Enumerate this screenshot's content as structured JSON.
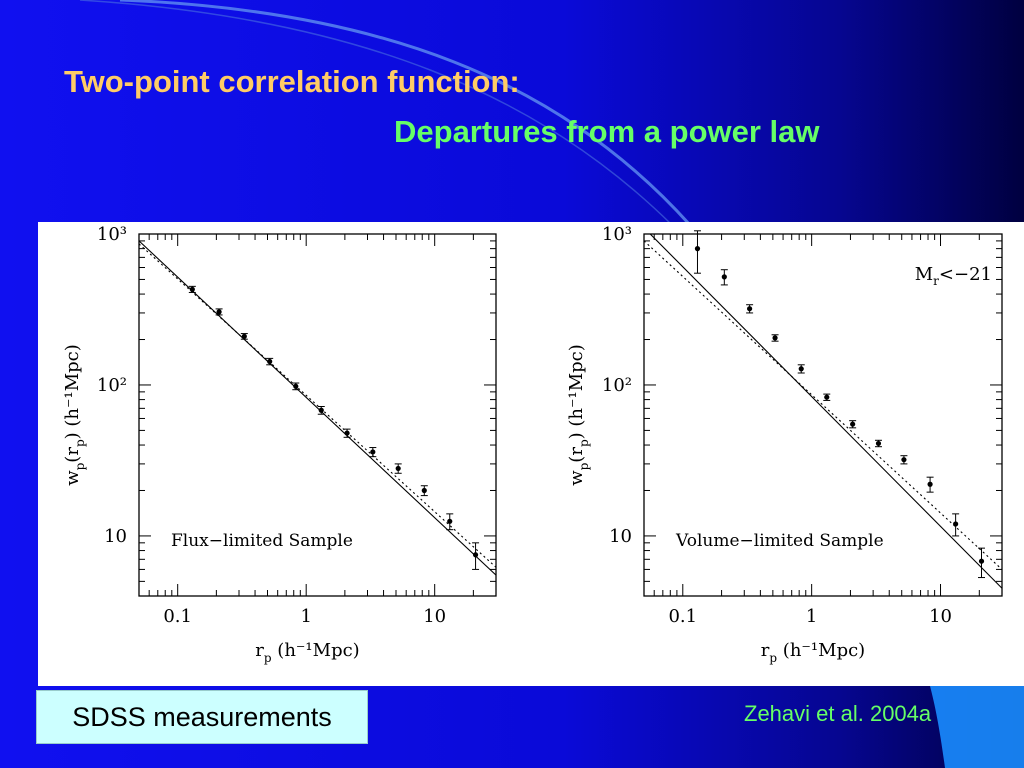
{
  "slide": {
    "title_line1": "Two-point correlation function:",
    "title_line2": "Departures from a power law",
    "caption": "SDSS measurements",
    "credit": "Zehavi et al. 2004a",
    "colors": {
      "background": "#1010f0",
      "title_line1": "#ffcc66",
      "title_line2": "#66ff66",
      "caption_box": "#ccffff",
      "credit": "#66ff66"
    }
  },
  "chart_data": [
    {
      "type": "scatter",
      "xlabel_main": "r",
      "xlabel_sub": "p",
      "xlabel_units": "(h⁻¹Mpc)",
      "ylabel": "w_p(r_p) (h⁻¹Mpc)",
      "ylabel_parts": [
        "w",
        "p",
        "(r",
        "p",
        ")",
        "(h⁻¹Mpc)"
      ],
      "xscale": "log",
      "yscale": "log",
      "xlim": [
        0.05,
        30
      ],
      "ylim": [
        4,
        1000
      ],
      "x_ticks": [
        {
          "value": 0.1,
          "label": "0.1"
        },
        {
          "value": 1,
          "label": "1"
        },
        {
          "value": 10,
          "label": "10"
        }
      ],
      "y_ticks": [
        {
          "value": 10,
          "label": "10"
        },
        {
          "value": 100,
          "label": "10²"
        },
        {
          "value": 1000,
          "label": "10³"
        }
      ],
      "annotation": "Flux−limited Sample",
      "annotation_position": "bottom-left",
      "series": [
        {
          "style": "points-with-errorbars",
          "x": [
            0.13,
            0.21,
            0.33,
            0.52,
            0.83,
            1.31,
            2.08,
            3.3,
            5.2,
            8.3,
            13.1,
            20.8
          ],
          "y": [
            430,
            305,
            210,
            143,
            98,
            68,
            48,
            36,
            28,
            20,
            12.5,
            7.5
          ],
          "err": [
            20,
            14,
            9,
            7,
            5,
            4,
            3,
            2.5,
            2,
            1.5,
            1.5,
            1.5
          ]
        },
        {
          "style": "solid-line",
          "x": [
            0.05,
            30
          ],
          "y": [
            900,
            5.5
          ]
        },
        {
          "style": "dotted-line",
          "x": [
            0.05,
            30
          ],
          "y": [
            860,
            6.2
          ]
        }
      ]
    },
    {
      "type": "scatter",
      "xlabel_main": "r",
      "xlabel_sub": "p",
      "xlabel_units": "(h⁻¹Mpc)",
      "ylabel": "w_p(r_p) (h⁻¹Mpc)",
      "ylabel_parts": [
        "w",
        "p",
        "(r",
        "p",
        ")",
        "(h⁻¹Mpc)"
      ],
      "xscale": "log",
      "yscale": "log",
      "xlim": [
        0.05,
        30
      ],
      "ylim": [
        4,
        1000
      ],
      "x_ticks": [
        {
          "value": 0.1,
          "label": "0.1"
        },
        {
          "value": 1,
          "label": "1"
        },
        {
          "value": 10,
          "label": "10"
        }
      ],
      "y_ticks": [
        {
          "value": 10,
          "label": "10"
        },
        {
          "value": 100,
          "label": "10²"
        },
        {
          "value": 1000,
          "label": "10³"
        }
      ],
      "annotation": "Volume−limited Sample",
      "annotation_position": "bottom-left",
      "legend_main": "M",
      "legend_sub": "r",
      "legend_rest": "<−21",
      "legend_position": "top-right",
      "series": [
        {
          "style": "points-with-errorbars",
          "x": [
            0.13,
            0.21,
            0.33,
            0.52,
            0.83,
            1.31,
            2.08,
            3.3,
            5.2,
            8.3,
            13.1,
            20.8
          ],
          "y": [
            800,
            520,
            320,
            205,
            128,
            83,
            55,
            41,
            32,
            22,
            12,
            6.8
          ],
          "err": [
            250,
            60,
            20,
            10,
            8,
            4,
            3,
            2,
            2,
            2.5,
            2,
            1.5
          ]
        },
        {
          "style": "solid-line",
          "x": [
            0.05,
            30
          ],
          "y": [
            1100,
            4.5
          ]
        },
        {
          "style": "dotted-line",
          "x": [
            0.05,
            30
          ],
          "y": [
            900,
            6
          ]
        }
      ]
    }
  ]
}
